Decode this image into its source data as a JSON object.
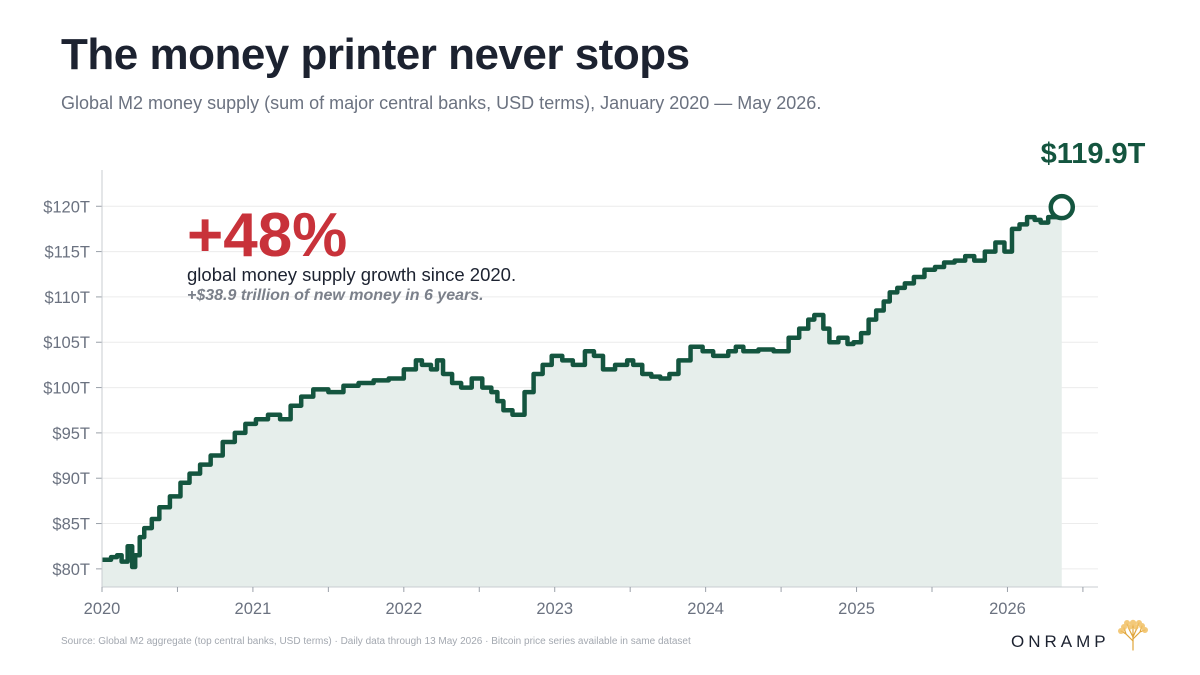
{
  "header": {
    "title": "The money printer never stops",
    "subtitle": "Global M2 money supply (sum of major central banks, USD terms), January 2020 — May 2026."
  },
  "annotation": {
    "big_stat": "+48%",
    "line1": "global money supply growth since 2020.",
    "line2": "+$38.9 trillion of new money in 6 years."
  },
  "end_label": "$119.9T",
  "footer": {
    "source": "Source: Global M2 aggregate (top central banks, USD terms) · Daily data through 13 May 2026 · Bitcoin price series available in same dataset",
    "brand": "ONRAMP"
  },
  "colors": {
    "line": "#14553f",
    "area": "#e6eeeb",
    "accent_red": "#c8323a",
    "grid": "#ececec",
    "axis_text": "#6b7280"
  },
  "chart_data": {
    "type": "line",
    "title": "The money printer never stops",
    "xlabel": "",
    "ylabel": "",
    "ylim": [
      78,
      124
    ],
    "xlim": [
      2020.0,
      2026.6
    ],
    "grid": "horizontal",
    "y_ticks": [
      80,
      85,
      90,
      95,
      100,
      105,
      110,
      115,
      120
    ],
    "y_tick_labels": [
      "$80T",
      "$85T",
      "$90T",
      "$95T",
      "$100T",
      "$105T",
      "$110T",
      "$115T",
      "$120T"
    ],
    "x_ticks": [
      2020,
      2021,
      2022,
      2023,
      2024,
      2025,
      2026
    ],
    "x_tick_labels": [
      "2020",
      "2021",
      "2022",
      "2023",
      "2024",
      "2025",
      "2026"
    ],
    "series": [
      {
        "x": [
          2020.0,
          2020.06,
          2020.1,
          2020.13,
          2020.17,
          2020.2,
          2020.22,
          2020.25,
          2020.28,
          2020.33,
          2020.38,
          2020.45,
          2020.52,
          2020.58,
          2020.65,
          2020.72,
          2020.8,
          2020.88,
          2020.95,
          2021.02,
          2021.1,
          2021.18,
          2021.25,
          2021.32,
          2021.4,
          2021.5,
          2021.6,
          2021.7,
          2021.8,
          2021.9,
          2022.0,
          2022.08,
          2022.12,
          2022.18,
          2022.22,
          2022.26,
          2022.32,
          2022.38,
          2022.45,
          2022.52,
          2022.58,
          2022.62,
          2022.66,
          2022.72,
          2022.8,
          2022.86,
          2022.92,
          2022.98,
          2023.05,
          2023.12,
          2023.2,
          2023.26,
          2023.32,
          2023.4,
          2023.48,
          2023.52,
          2023.58,
          2023.64,
          2023.7,
          2023.76,
          2023.82,
          2023.9,
          2023.98,
          2024.05,
          2024.15,
          2024.2,
          2024.25,
          2024.35,
          2024.45,
          2024.55,
          2024.62,
          2024.68,
          2024.72,
          2024.78,
          2024.82,
          2024.88,
          2024.94,
          2024.98,
          2025.03,
          2025.08,
          2025.13,
          2025.18,
          2025.22,
          2025.27,
          2025.32,
          2025.38,
          2025.45,
          2025.52,
          2025.58,
          2025.65,
          2025.72,
          2025.78,
          2025.85,
          2025.92,
          2025.98,
          2026.03,
          2026.08,
          2026.13,
          2026.18,
          2026.22,
          2026.27,
          2026.33,
          2026.36
        ],
        "values": [
          81.0,
          81.3,
          81.5,
          80.8,
          82.5,
          80.2,
          81.5,
          83.5,
          84.5,
          85.5,
          86.8,
          88.0,
          89.5,
          90.5,
          91.5,
          92.5,
          94.0,
          95.0,
          96.0,
          96.5,
          97.0,
          96.5,
          98.0,
          99.0,
          99.8,
          99.5,
          100.2,
          100.5,
          100.8,
          101.0,
          102.0,
          103.0,
          102.5,
          102.0,
          103.0,
          101.5,
          100.5,
          100.0,
          101.0,
          100.0,
          99.5,
          98.5,
          97.5,
          97.0,
          99.5,
          101.5,
          102.5,
          103.5,
          103.0,
          102.5,
          104.0,
          103.5,
          102.0,
          102.5,
          103.0,
          102.5,
          101.5,
          101.2,
          101.0,
          101.5,
          103.0,
          104.5,
          104.0,
          103.5,
          104.0,
          104.5,
          104.0,
          104.2,
          104.0,
          105.5,
          106.5,
          107.5,
          108.0,
          106.5,
          105.0,
          105.5,
          104.8,
          105.0,
          106.0,
          107.5,
          108.5,
          109.5,
          110.5,
          111.0,
          111.5,
          112.2,
          113.0,
          113.3,
          113.8,
          114.0,
          114.5,
          114.0,
          115.0,
          116.0,
          115.0,
          117.5,
          118.0,
          118.8,
          118.5,
          118.2,
          118.8,
          119.5,
          119.9
        ]
      }
    ]
  }
}
